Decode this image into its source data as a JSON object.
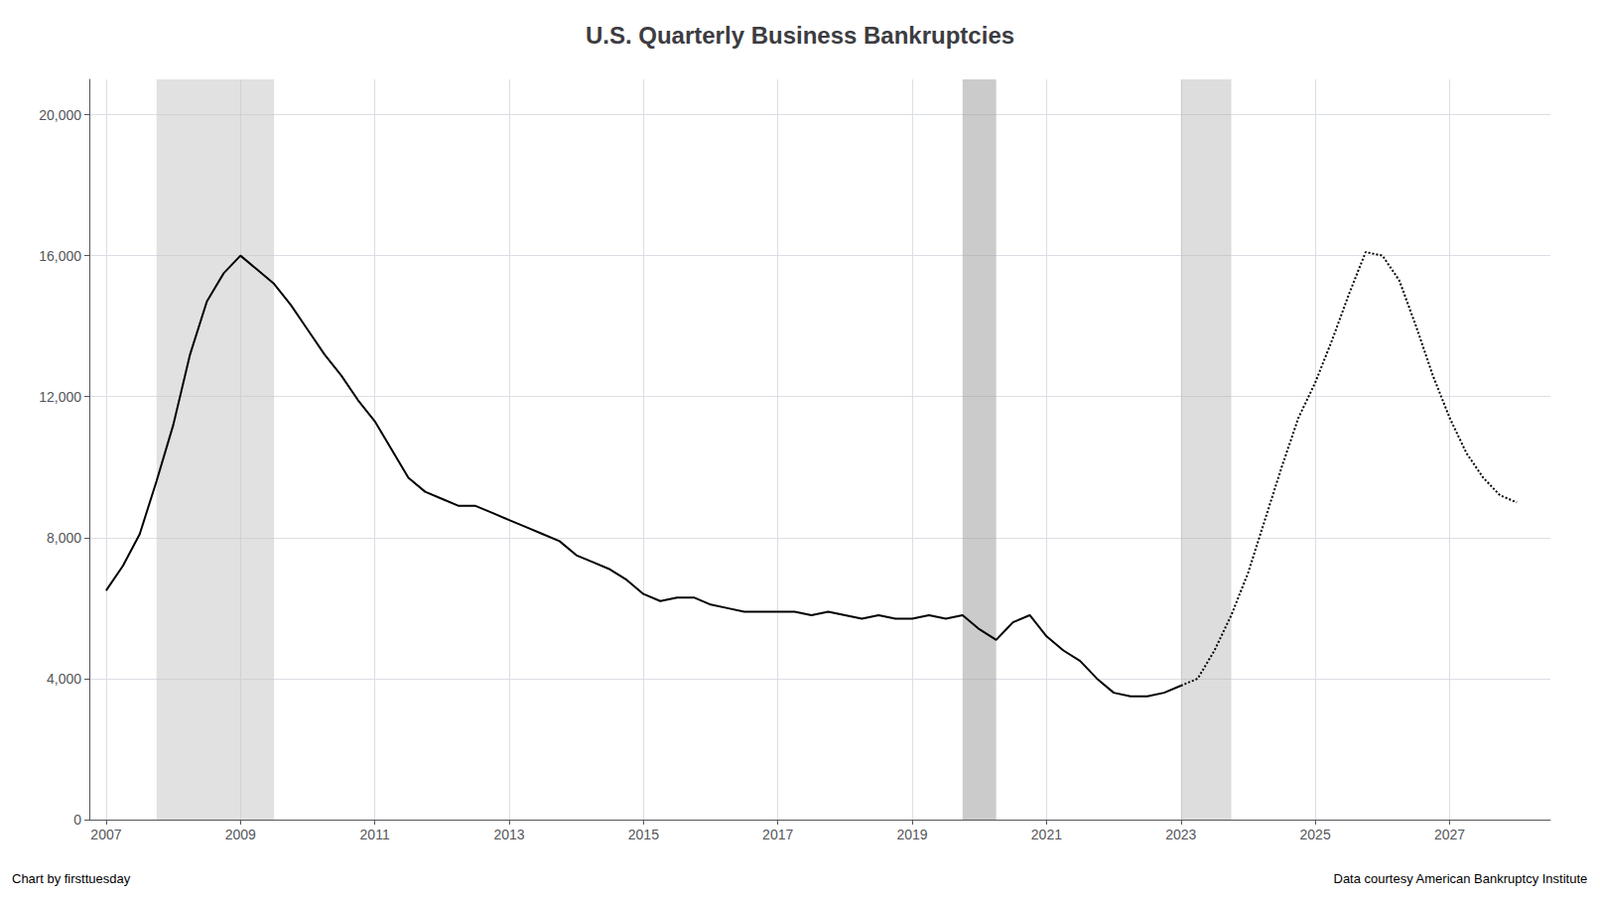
{
  "chart_data": {
    "type": "line",
    "title": "U.S. Quarterly Business Bankruptcies",
    "annotations": [
      "Chart by firsttuesday",
      "Data courtesy American Bankruptcy Institute"
    ],
    "xlim": [
      2006.75,
      2028.5
    ],
    "xticks": [
      2007,
      2009,
      2011,
      2013,
      2015,
      2017,
      2019,
      2021,
      2023,
      2025,
      2027
    ],
    "ylim": [
      0,
      21000
    ],
    "yticks": [
      0,
      {
        "value": 4000,
        "label": "4,000"
      },
      {
        "value": 8000,
        "label": "8,000"
      },
      {
        "value": 12000,
        "label": "12,000"
      },
      {
        "value": 16000,
        "label": "16,000"
      },
      {
        "value": 20000,
        "label": "20,000"
      }
    ],
    "grid": true,
    "shaded_ranges": [
      {
        "start": 2007.75,
        "end": 2009.5
      },
      {
        "start": 2019.75,
        "end": 2020.25
      },
      {
        "start": 2023.0,
        "end": 2023.75
      }
    ],
    "series": [
      {
        "color": "#000000",
        "line_style": "solid",
        "x": [
          2007.0,
          2007.25,
          2007.5,
          2007.75,
          2008.0,
          2008.25,
          2008.5,
          2008.75,
          2009.0,
          2009.25,
          2009.5,
          2009.75,
          2010.0,
          2010.25,
          2010.5,
          2010.75,
          2011.0,
          2011.25,
          2011.5,
          2011.75,
          2012.0,
          2012.25,
          2012.5,
          2012.75,
          2013.0,
          2013.25,
          2013.5,
          2013.75,
          2014.0,
          2014.25,
          2014.5,
          2014.75,
          2015.0,
          2015.25,
          2015.5,
          2015.75,
          2016.0,
          2016.25,
          2016.5,
          2016.75,
          2017.0,
          2017.25,
          2017.5,
          2017.75,
          2018.0,
          2018.25,
          2018.5,
          2018.75,
          2019.0,
          2019.25,
          2019.5,
          2019.75,
          2020.0,
          2020.25,
          2020.5,
          2020.75,
          2021.0,
          2021.25,
          2021.5,
          2021.75,
          2022.0,
          2022.25,
          2022.5,
          2022.75,
          2023.0
        ],
        "values": [
          6500,
          7200,
          8100,
          9600,
          11200,
          13200,
          14700,
          15500,
          16000,
          15600,
          15200,
          14600,
          13900,
          13200,
          12600,
          11900,
          11300,
          10500,
          9700,
          9300,
          9100,
          8900,
          8900,
          8700,
          8500,
          8300,
          8100,
          7900,
          7500,
          7300,
          7100,
          6800,
          6400,
          6200,
          6300,
          6300,
          6100,
          6000,
          5900,
          5900,
          5900,
          5900,
          5800,
          5900,
          5800,
          5700,
          5800,
          5700,
          5700,
          5800,
          5700,
          5800,
          5400,
          5100,
          5600,
          5800,
          5200,
          4800,
          4500,
          4000,
          3600,
          3500,
          3500,
          3600,
          3800
        ]
      },
      {
        "color": "#000000",
        "line_style": "dotted",
        "x": [
          2023.0,
          2023.25,
          2023.5,
          2023.75,
          2024.0,
          2024.25,
          2024.5,
          2024.75,
          2025.0,
          2025.25,
          2025.5,
          2025.75,
          2026.0,
          2026.25,
          2026.5,
          2026.75,
          2027.0,
          2027.25,
          2027.5,
          2027.75,
          2028.0
        ],
        "values": [
          3800,
          4000,
          4800,
          5800,
          7000,
          8500,
          10000,
          11400,
          12400,
          13600,
          14900,
          16100,
          16000,
          15300,
          14000,
          12600,
          11400,
          10400,
          9700,
          9200,
          9000
        ]
      }
    ]
  }
}
